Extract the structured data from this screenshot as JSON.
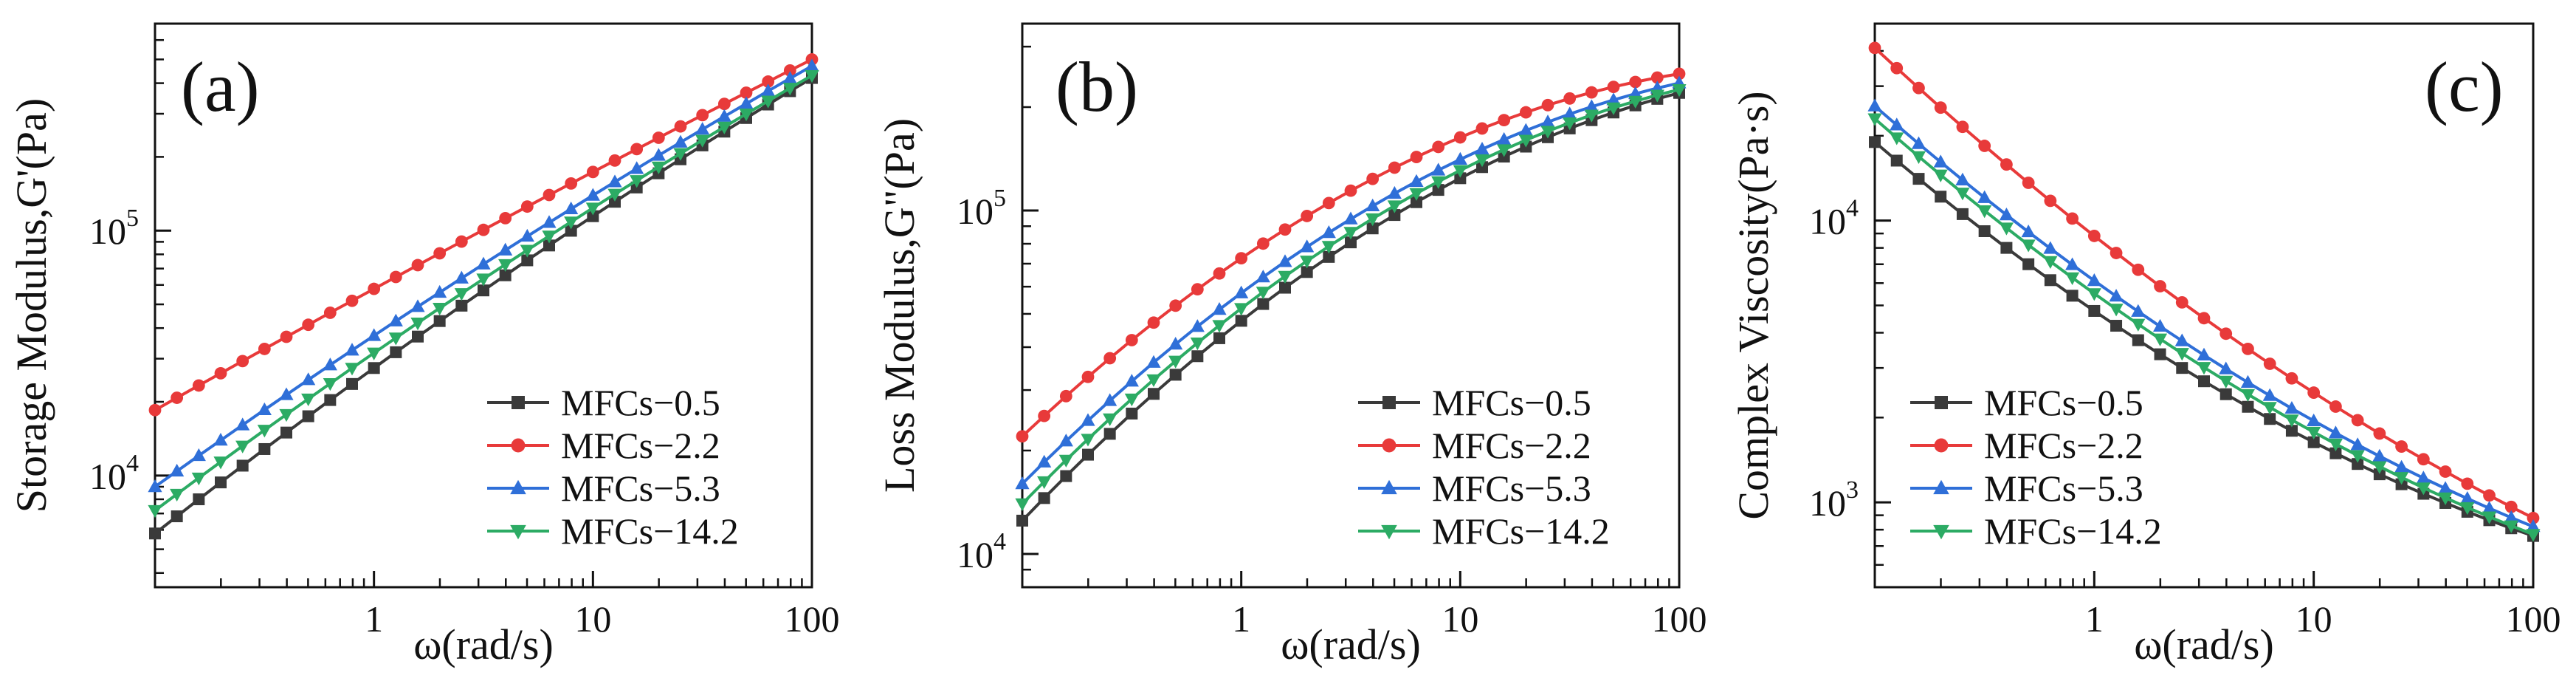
{
  "figure": {
    "background": "#ffffff"
  },
  "chart_data": [
    {
      "type": "line",
      "panel_label": "(a)",
      "xlabel": "ω(rad/s)",
      "ylabel": "Storage Modulus,G'(Pa)",
      "xscale": "log",
      "yscale": "log",
      "xlim": [
        0.1,
        100
      ],
      "ylim": [
        3500,
        700000
      ],
      "xticks": [
        {
          "value": 1,
          "label": "1"
        },
        {
          "value": 10,
          "label": "10"
        },
        {
          "value": 100,
          "label": "100"
        }
      ],
      "yticks": [
        {
          "value": 10000,
          "base": "10",
          "exp": "4"
        },
        {
          "value": 100000,
          "base": "10",
          "exp": "5"
        }
      ],
      "legend_position": "bottom-right",
      "series": [
        {
          "name": "MFCs−0.5",
          "color": "#3a3a3a",
          "marker": "square",
          "x_range": [
            0.1,
            100
          ],
          "y_start": 5800,
          "y_end": 420000,
          "y_max": 420000,
          "curvature": 0.25
        },
        {
          "name": "MFCs−2.2",
          "color": "#e83a3a",
          "marker": "circle",
          "x_range": [
            0.1,
            100
          ],
          "y_start": 18500,
          "y_end": 500000,
          "y_max": 520000,
          "curvature": 0.08
        },
        {
          "name": "MFCs−5.3",
          "color": "#2f6fd8",
          "marker": "triangle-up",
          "x_range": [
            0.1,
            100
          ],
          "y_start": 9000,
          "y_end": 470000,
          "y_max": 470000,
          "curvature": 0.2
        },
        {
          "name": "MFCs−14.2",
          "color": "#2cab64",
          "marker": "triangle-down",
          "x_range": [
            0.1,
            100
          ],
          "y_start": 7200,
          "y_end": 430000,
          "y_max": 430000,
          "curvature": 0.23
        }
      ]
    },
    {
      "type": "line",
      "panel_label": "(b)",
      "xlabel": "ω(rad/s)",
      "ylabel": "Loss Modulus,G\"(Pa)",
      "xscale": "log",
      "yscale": "log",
      "xlim": [
        0.1,
        100
      ],
      "ylim": [
        8000,
        350000
      ],
      "xticks": [
        {
          "value": 1,
          "label": "1"
        },
        {
          "value": 10,
          "label": "10"
        },
        {
          "value": 100,
          "label": "100"
        }
      ],
      "yticks": [
        {
          "value": 10000,
          "base": "10",
          "exp": "4"
        },
        {
          "value": 100000,
          "base": "10",
          "exp": "5"
        }
      ],
      "legend_position": "bottom-right",
      "series": [
        {
          "name": "MFCs−0.5",
          "color": "#3a3a3a",
          "marker": "square",
          "x_range": [
            0.1,
            100
          ],
          "y_start": 12500,
          "y_end": 220000,
          "y_max": 225000,
          "curvature": 0.75
        },
        {
          "name": "MFCs−2.2",
          "color": "#e83a3a",
          "marker": "circle",
          "x_range": [
            0.1,
            100
          ],
          "y_start": 22000,
          "y_end": 250000,
          "y_max": 265000,
          "curvature": 0.75
        },
        {
          "name": "MFCs−5.3",
          "color": "#2f6fd8",
          "marker": "triangle-up",
          "x_range": [
            0.1,
            100
          ],
          "y_start": 16000,
          "y_end": 235000,
          "y_max": 245000,
          "curvature": 0.75
        },
        {
          "name": "MFCs−14.2",
          "color": "#2cab64",
          "marker": "triangle-down",
          "x_range": [
            0.1,
            100
          ],
          "y_start": 14000,
          "y_end": 225000,
          "y_max": 230000,
          "curvature": 0.75
        }
      ]
    },
    {
      "type": "line",
      "panel_label": "(c)",
      "xlabel": "ω(rad/s)",
      "ylabel": "Complex Viscosity(Pa·s)",
      "xscale": "log",
      "yscale": "log",
      "xlim": [
        0.1,
        100
      ],
      "ylim": [
        500,
        50000
      ],
      "xticks": [
        {
          "value": 1,
          "label": "1"
        },
        {
          "value": 10,
          "label": "10"
        },
        {
          "value": 100,
          "label": "100"
        }
      ],
      "yticks": [
        {
          "value": 1000,
          "base": "10",
          "exp": "3"
        },
        {
          "value": 10000,
          "base": "10",
          "exp": "4"
        }
      ],
      "legend_position": "bottom-left",
      "series": [
        {
          "name": "MFCs−0.5",
          "color": "#3a3a3a",
          "marker": "square",
          "x_range": [
            0.1,
            100
          ],
          "y_start": 19000,
          "y_end": 760,
          "curvature": -0.6
        },
        {
          "name": "MFCs−2.2",
          "color": "#e83a3a",
          "marker": "circle",
          "x_range": [
            0.1,
            100
          ],
          "y_start": 41000,
          "y_end": 880,
          "curvature": -0.5
        },
        {
          "name": "MFCs−5.3",
          "color": "#2f6fd8",
          "marker": "triangle-up",
          "x_range": [
            0.1,
            100
          ],
          "y_start": 25500,
          "y_end": 820,
          "curvature": -0.55
        },
        {
          "name": "MFCs−14.2",
          "color": "#2cab64",
          "marker": "triangle-down",
          "x_range": [
            0.1,
            100
          ],
          "y_start": 23000,
          "y_end": 770,
          "curvature": -0.58
        }
      ]
    }
  ]
}
